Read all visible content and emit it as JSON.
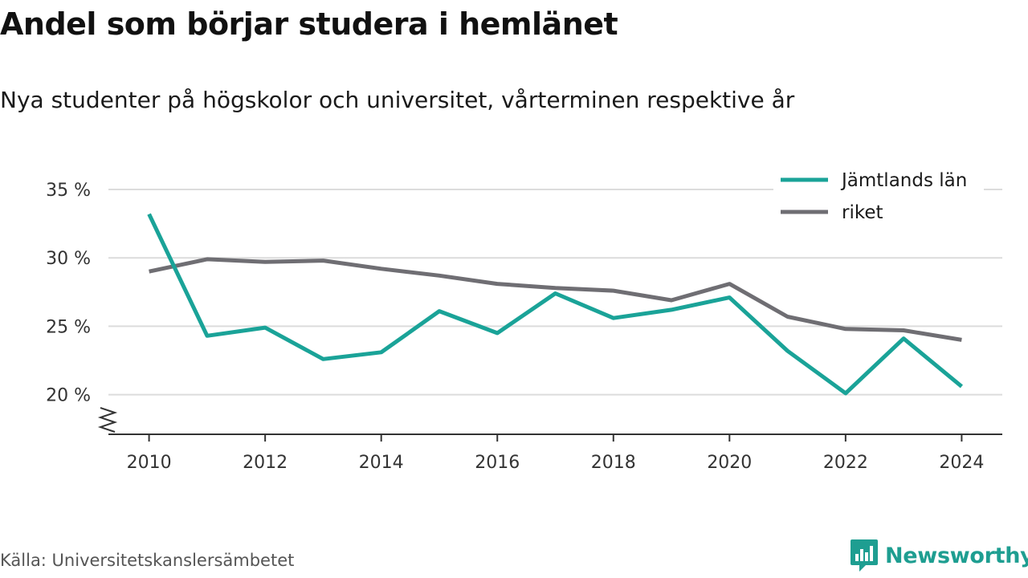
{
  "title": "Andel som börjar studera i hemlänet",
  "subtitle": "Nya studenter på högskolor och universitet, vårterminen respektive år",
  "source": "Källa: Universitetskanslersämbetet",
  "brand": {
    "name": "Newsworthy",
    "icon": "newsworthy-logo-icon",
    "color": "#1e9e91"
  },
  "chart_data": {
    "type": "line",
    "title": "Andel som börjar studera i hemlänet",
    "subtitle": "Nya studenter på högskolor och universitet, vårterminen respektive år",
    "x": [
      2010,
      2011,
      2012,
      2013,
      2014,
      2015,
      2016,
      2017,
      2018,
      2019,
      2020,
      2021,
      2022,
      2023,
      2024
    ],
    "series": [
      {
        "name": "Jämtlands län",
        "color": "#1aa398",
        "values": [
          33.2,
          24.3,
          24.9,
          22.6,
          23.1,
          26.1,
          24.5,
          27.4,
          25.6,
          26.2,
          27.1,
          23.2,
          20.1,
          24.1,
          20.6
        ]
      },
      {
        "name": "riket",
        "color": "#6f6e73",
        "values": [
          29.0,
          29.9,
          29.7,
          29.8,
          29.2,
          28.7,
          28.1,
          27.8,
          27.6,
          26.9,
          28.1,
          25.7,
          24.8,
          24.7,
          24.0
        ]
      }
    ],
    "x_ticks": [
      2010,
      2012,
      2014,
      2016,
      2018,
      2020,
      2022,
      2024
    ],
    "x_tick_labels": [
      "2010",
      "2012",
      "2014",
      "2016",
      "2018",
      "2020",
      "2022",
      "2024"
    ],
    "y_ticks": [
      20,
      25,
      30,
      35
    ],
    "y_tick_labels": [
      "20 %",
      "25 %",
      "30 %",
      "35 %"
    ],
    "xlim": [
      2009.3,
      2024.7
    ],
    "ylim": [
      17.1,
      35
    ],
    "grid": true,
    "legend_position": "top-right",
    "axis_break": "y-axis, below 20 %"
  }
}
